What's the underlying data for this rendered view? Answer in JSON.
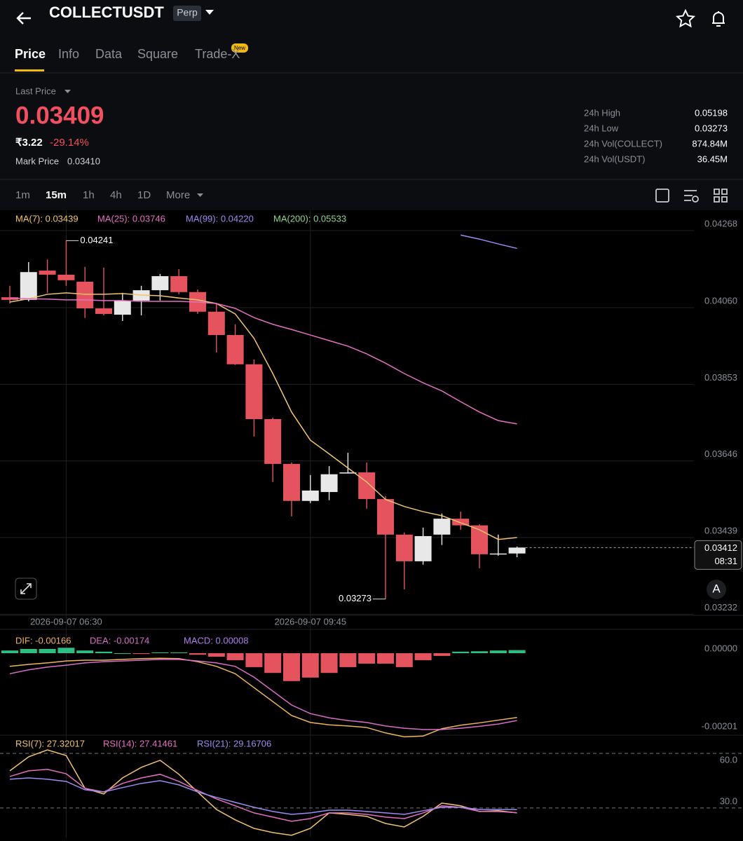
{
  "header": {
    "symbol": "COLLECTUSDT",
    "badge": "Perp"
  },
  "tabs": {
    "items": [
      "Price",
      "Info",
      "Data",
      "Square",
      "Trade-X"
    ],
    "badge": "New"
  },
  "price": {
    "label": "Last Price",
    "last": "0.03409",
    "fiat": "₹3.22",
    "change": "-29.14%",
    "mark_label": "Mark Price",
    "mark": "0.03410"
  },
  "stats": [
    [
      "24h High",
      "0.05198"
    ],
    [
      "24h Low",
      "0.03273"
    ],
    [
      "24h Vol(COLLECT)",
      "874.84M"
    ],
    [
      "24h Vol(USDT)",
      "36.45M"
    ]
  ],
  "intervals": [
    "1m",
    "15m",
    "1h",
    "4h",
    "1D",
    "More"
  ],
  "chart_button": "A",
  "chart_data": [
    {
      "type": "candlestick",
      "categories": [
        null,
        null,
        null,
        "2026-09-07 06:30",
        null,
        null,
        null,
        null,
        null,
        null,
        null,
        null,
        null,
        null,
        null,
        null,
        "2026-09-07 09:45",
        null,
        null,
        null,
        null,
        null,
        null,
        null,
        null,
        null,
        null,
        null
      ],
      "open": [
        0.04088,
        0.04081,
        0.0416,
        0.04149,
        0.0413,
        0.04058,
        0.04041,
        0.04079,
        0.04107,
        0.04145,
        0.04102,
        0.04049,
        0.03986,
        0.03907,
        0.03759,
        0.03638,
        0.03538,
        0.03562,
        0.03612,
        0.03615,
        0.03543,
        0.03447,
        0.03375,
        0.03447,
        0.0349,
        0.03472,
        0.03394,
        0.03396
      ],
      "high": [
        0.04119,
        0.04183,
        0.0419,
        0.04241,
        0.0417,
        0.04168,
        0.041,
        0.04119,
        0.04151,
        0.04164,
        0.04109,
        0.04073,
        0.04015,
        0.0392,
        0.03763,
        0.03642,
        0.03608,
        0.03632,
        0.03668,
        0.03642,
        0.03551,
        0.03453,
        0.03466,
        0.03504,
        0.03509,
        0.03475,
        0.03447,
        0.03415
      ],
      "low": [
        0.04071,
        0.04077,
        0.041,
        0.04119,
        0.04032,
        0.04039,
        0.04024,
        0.04039,
        0.04079,
        0.04096,
        0.04043,
        0.03939,
        0.03905,
        0.03712,
        0.03589,
        0.03496,
        0.03532,
        0.0354,
        0.03612,
        0.03517,
        0.03273,
        0.03299,
        0.03366,
        0.03419,
        0.0346,
        0.03356,
        0.0339,
        0.03386
      ],
      "close": [
        0.04081,
        0.04156,
        0.04149,
        0.04134,
        0.04058,
        0.04043,
        0.04079,
        0.04107,
        0.04145,
        0.04102,
        0.04049,
        0.03986,
        0.03907,
        0.03759,
        0.03638,
        0.03538,
        0.03566,
        0.0361,
        0.03615,
        0.03543,
        0.03447,
        0.03375,
        0.03443,
        0.0349,
        0.03472,
        0.03394,
        0.03396,
        0.03412
      ],
      "up_color": "#e8e8e8",
      "down_color": "#e5535f",
      "series": [
        {
          "name": "MA(7): 0.03439",
          "color": "#f0c36d",
          "values": [
            0.04075,
            0.04084,
            0.04096,
            0.041,
            0.04096,
            0.04096,
            0.04098,
            0.04094,
            0.04092,
            0.04086,
            0.04081,
            0.04071,
            0.04043,
            0.03977,
            0.03882,
            0.03778,
            0.03702,
            0.03665,
            0.03627,
            0.03589,
            0.03542,
            0.03523,
            0.03509,
            0.03498,
            0.03479,
            0.0346,
            0.03434,
            0.03439
          ]
        },
        {
          "name": "MA(25): 0.03746",
          "color": "#e46fc0",
          "values": [
            0.04086,
            0.04084,
            0.04083,
            0.04081,
            0.04081,
            0.04079,
            0.04079,
            0.04077,
            0.04077,
            0.04077,
            0.04075,
            0.04071,
            0.04058,
            0.04033,
            0.04015,
            0.04001,
            0.03986,
            0.03971,
            0.03956,
            0.03935,
            0.0391,
            0.03882,
            0.03857,
            0.03835,
            0.03806,
            0.03778,
            0.03755,
            0.03746
          ]
        },
        {
          "name": "MA(99): 0.04220",
          "color": "#9a8cf0",
          "values": [
            null,
            null,
            null,
            null,
            null,
            null,
            null,
            null,
            null,
            null,
            null,
            null,
            null,
            null,
            null,
            null,
            null,
            null,
            null,
            null,
            null,
            null,
            null,
            null,
            0.04256,
            0.04245,
            0.04232,
            0.0422
          ]
        },
        {
          "name": "MA(200): 0.05533",
          "color": "#8fd58c",
          "values": [
            null,
            null,
            null,
            null,
            null,
            null,
            null,
            null,
            null,
            null,
            null,
            null,
            null,
            null,
            null,
            null,
            null,
            null,
            null,
            null,
            null,
            null,
            null,
            null,
            null,
            null,
            null,
            null
          ]
        }
      ],
      "countdown": "08:31",
      "ylim": [
        0.03229,
        0.04323
      ],
      "yticks": [
        0.04268,
        {
          "value": 0.0406,
          "label": "0.04060"
        },
        0.03853,
        0.03646,
        0.03439,
        0.03232
      ],
      "grid": true
    },
    {
      "type": "macd",
      "histogram": {
        "name": "MACD: 0.00008",
        "color": "#b07cf0",
        "up_color": "#2ebd85",
        "down_color": "#e5535f",
        "values": [
          7e-05,
          0.00011,
          0.00011,
          0.00014,
          7e-05,
          4e-05,
          0,
          -2e-05,
          2e-05,
          2e-05,
          -4e-05,
          -9e-05,
          -0.00018,
          -0.00036,
          -0.00051,
          -0.00072,
          -0.00063,
          -0.00051,
          -0.00036,
          -0.00027,
          -0.00027,
          -0.00036,
          -0.00018,
          -7e-05,
          4e-05,
          5e-05,
          7e-05,
          8e-05
        ]
      },
      "series": [
        {
          "name": "DIF: -0.00166",
          "color": "#f0b45a",
          "values": [
            -0.00034,
            -0.00029,
            -0.00025,
            -0.0002,
            -0.00018,
            -0.00018,
            -0.00016,
            -0.00014,
            -0.00013,
            -0.00014,
            -0.00022,
            -0.00034,
            -0.00053,
            -0.00089,
            -0.00125,
            -0.00161,
            -0.00179,
            -0.00185,
            -0.00188,
            -0.00192,
            -0.00206,
            -0.00216,
            -0.00214,
            -0.00195,
            -0.00186,
            -0.0018,
            -0.00173,
            -0.00166
          ]
        },
        {
          "name": "DEA: -0.00174",
          "color": "#d86cc9",
          "values": [
            -0.00053,
            -0.00043,
            -0.00036,
            -0.00031,
            -0.00025,
            -0.00022,
            -0.0002,
            -0.00018,
            -0.00016,
            -0.00016,
            -0.0002,
            -0.00025,
            -0.00034,
            -0.00062,
            -0.00098,
            -0.00134,
            -0.00156,
            -0.00167,
            -0.00174,
            -0.00179,
            -0.00188,
            -0.00194,
            -0.00197,
            -0.00197,
            -0.00194,
            -0.00189,
            -0.00183,
            -0.00174
          ]
        }
      ],
      "ylim": [
        -0.0021,
        0.00058
      ],
      "yticks": [
        {
          "value": 0,
          "label": "0.00000"
        },
        -0.00201
      ]
    },
    {
      "type": "line",
      "series": [
        {
          "name": "RSI(7): 27.32017",
          "color": "#f0c36d",
          "values": [
            50.4,
            58.1,
            61.9,
            58.8,
            40.8,
            37.7,
            46.5,
            52.3,
            56.2,
            48.5,
            38.8,
            29.2,
            23.5,
            18.8,
            16.5,
            15,
            18.8,
            27.3,
            26.5,
            25.4,
            21.5,
            19.6,
            25.4,
            32.7,
            31.2,
            28.1,
            28.5,
            27.32017
          ]
        },
        {
          "name": "RSI(14): 27.41461",
          "color": "#e46fc0",
          "values": [
            47.3,
            50.4,
            51.2,
            48.8,
            40.8,
            38.8,
            43.5,
            46.5,
            48.5,
            44.6,
            39.6,
            35,
            31.2,
            27.3,
            25,
            22.7,
            24.2,
            27.3,
            27.3,
            26.5,
            25,
            24.2,
            27.3,
            31.2,
            30.4,
            28.1,
            28.1,
            27.41461
          ]
        },
        {
          "name": "RSI(21): 29.16706",
          "color": "#9a8cf0",
          "values": [
            45.8,
            46.5,
            45.8,
            44.6,
            40,
            38.8,
            41.2,
            43.5,
            45,
            42.7,
            38.8,
            35.8,
            33.1,
            30.4,
            28.1,
            26.5,
            27.3,
            28.8,
            28.8,
            28.1,
            27.3,
            26.5,
            28.5,
            30.4,
            30.4,
            29.2,
            29.2,
            29.16706
          ]
        }
      ],
      "ylim": [
        13.8,
        69.6
      ],
      "yticks": [
        {
          "value": 60,
          "label": "60.0"
        },
        {
          "value": 30,
          "label": "30.0"
        }
      ],
      "grid": "dashed"
    }
  ]
}
